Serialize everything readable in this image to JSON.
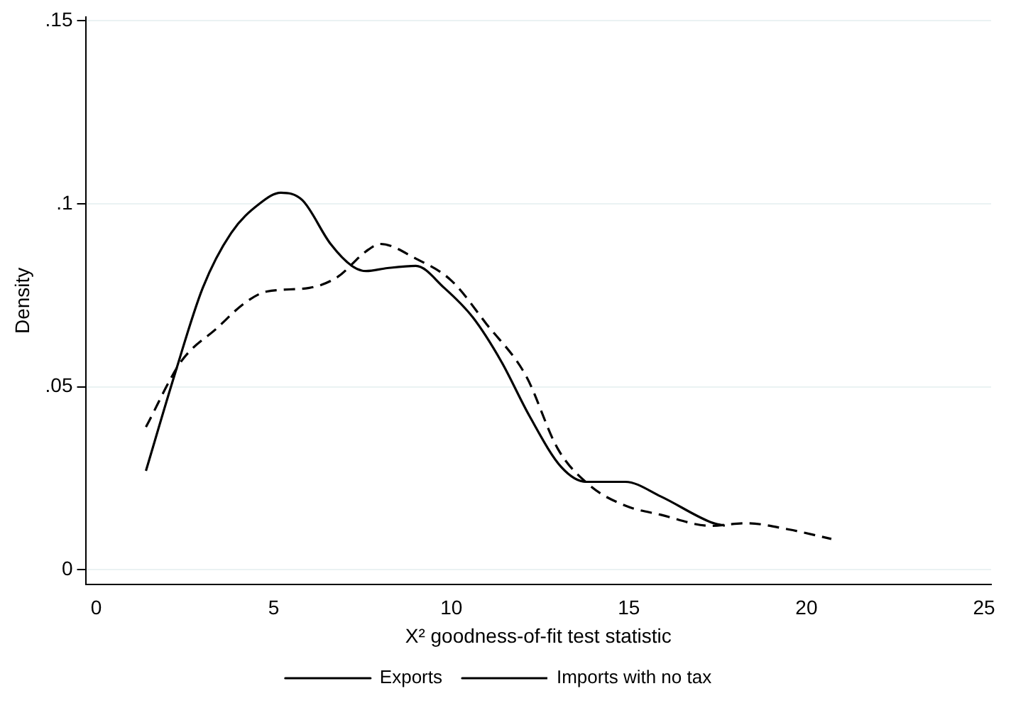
{
  "chart_data": {
    "type": "line",
    "xlabel": "X² goodness-of-fit test statistic",
    "ylabel": "Density",
    "xlim": [
      -0.3,
      25.2
    ],
    "xticks": [
      0,
      5,
      10,
      15,
      20,
      25
    ],
    "ylim": [
      -0.004,
      0.151
    ],
    "yticks": [
      0,
      {
        "value": 0.05,
        "label": ".05"
      },
      {
        "value": 0.1,
        "label": ".1"
      },
      {
        "value": 0.15,
        "label": ".15"
      }
    ],
    "grid": "y",
    "legend": "bottom",
    "marker": "none",
    "series": [
      {
        "name": "Exports",
        "color": "#000000",
        "line_style": "solid",
        "x": [
          1.4,
          2.2,
          3.0,
          3.8,
          4.6,
          5.2,
          5.8,
          6.6,
          7.2,
          7.6,
          8.2,
          9.0,
          9.8,
          10.6,
          11.4,
          12.2,
          13.1,
          13.8,
          14.9,
          15.9,
          17.3,
          17.7
        ],
        "values": [
          0.027,
          0.053,
          0.077,
          0.092,
          0.1,
          0.103,
          0.101,
          0.089,
          0.083,
          0.0816,
          0.0824,
          0.083,
          0.077,
          0.069,
          0.057,
          0.042,
          0.028,
          0.024,
          0.024,
          0.02,
          0.013,
          0.012
        ]
      },
      {
        "name": "Imports with no tax",
        "color": "#000000",
        "line_style": "dashed",
        "x": [
          1.4,
          2.4,
          3.4,
          4.2,
          4.8,
          6.0,
          6.8,
          7.6,
          8.0,
          9.0,
          10.0,
          11.0,
          12.1,
          13.0,
          13.9,
          14.9,
          15.9,
          17.3,
          18.3,
          19.5,
          20.7
        ],
        "values": [
          0.039,
          0.057,
          0.066,
          0.073,
          0.076,
          0.077,
          0.08,
          0.087,
          0.089,
          0.085,
          0.079,
          0.067,
          0.053,
          0.033,
          0.023,
          0.0175,
          0.015,
          0.012,
          0.0127,
          0.011,
          0.0084
        ]
      }
    ]
  }
}
